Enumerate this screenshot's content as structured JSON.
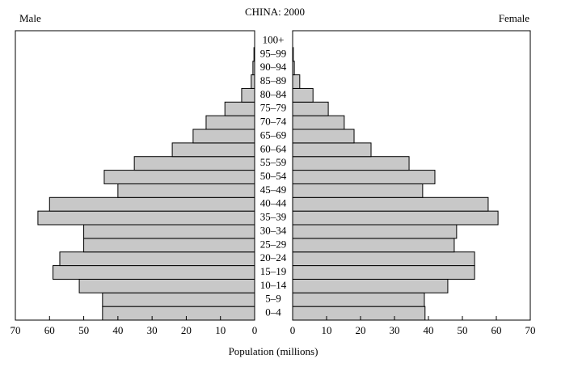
{
  "chart_data": {
    "type": "population-pyramid",
    "title": "CHINA: 2000",
    "x_label": "Population (millions)",
    "categories": [
      "0–4",
      "5–9",
      "10–14",
      "15–19",
      "20–24",
      "25–29",
      "30–34",
      "35–39",
      "40–44",
      "45–49",
      "50–54",
      "55–59",
      "60–64",
      "65–69",
      "70–74",
      "75–79",
      "80–84",
      "85–89",
      "90–94",
      "95–99",
      "100+"
    ],
    "series": [
      {
        "name": "Male",
        "color": "#c8c8c8",
        "values": [
          44.5,
          44.5,
          51.3,
          59,
          57,
          50,
          50,
          63.4,
          60,
          40,
          44,
          35.2,
          24.1,
          18,
          14.2,
          8.7,
          3.8,
          1,
          0.5,
          0.2,
          0
        ]
      },
      {
        "name": "Female",
        "color": "#c8c8c8",
        "values": [
          39,
          38.8,
          45.7,
          53.6,
          53.6,
          47.6,
          48.3,
          60.5,
          57.6,
          38.3,
          41.9,
          34.3,
          23.1,
          18.1,
          15.2,
          10.5,
          6,
          2.1,
          0.5,
          0.2,
          0
        ]
      }
    ],
    "xlim": [
      0,
      70
    ],
    "xticks": [
      0,
      10,
      20,
      30,
      40,
      50,
      60,
      70
    ]
  }
}
